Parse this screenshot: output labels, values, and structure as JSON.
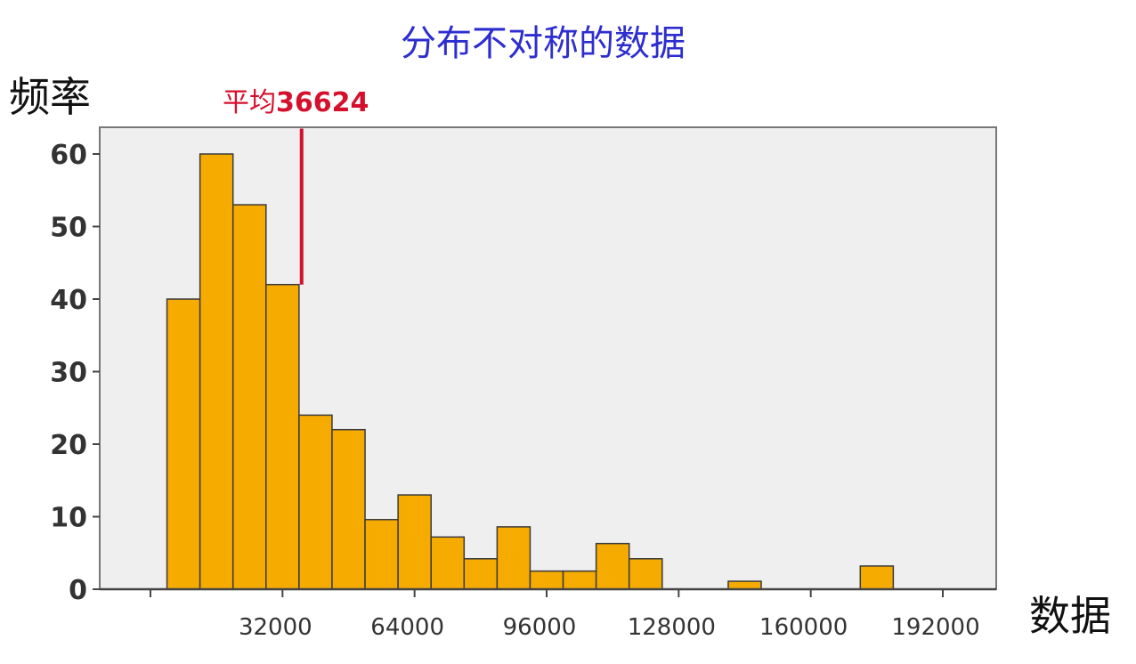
{
  "chart_data": {
    "type": "bar",
    "title": "分布不对称的数据",
    "ylabel": "频率",
    "xlabel": "数据",
    "ylim": [
      0,
      64
    ],
    "xlim": [
      -8000,
      200000
    ],
    "yticks": [
      0,
      10,
      20,
      30,
      40,
      50,
      60
    ],
    "xticks": [
      "32000",
      "64000",
      "96000",
      "128000",
      "160000",
      "192000"
    ],
    "xtick_values": [
      32000,
      64000,
      96000,
      128000,
      160000,
      192000
    ],
    "grid": false,
    "legend": "none",
    "bin_width": 8000,
    "bins": [
      {
        "start": 4000,
        "value": 40
      },
      {
        "start": 12000,
        "value": 60
      },
      {
        "start": 20000,
        "value": 53
      },
      {
        "start": 28000,
        "value": 42
      },
      {
        "start": 36000,
        "value": 24
      },
      {
        "start": 44000,
        "value": 22
      },
      {
        "start": 52000,
        "value": 9.6
      },
      {
        "start": 60000,
        "value": 13
      },
      {
        "start": 68000,
        "value": 7.2
      },
      {
        "start": 76000,
        "value": 4.2
      },
      {
        "start": 84000,
        "value": 8.6
      },
      {
        "start": 92000,
        "value": 2.5
      },
      {
        "start": 100000,
        "value": 2.5
      },
      {
        "start": 108000,
        "value": 6.3
      },
      {
        "start": 116000,
        "value": 4.2
      },
      {
        "start": 140000,
        "value": 1.1
      },
      {
        "start": 172000,
        "value": 3.2
      }
    ],
    "mean": {
      "label_prefix": "平均",
      "value_label": "36624",
      "value": 36624,
      "line_top": 63.5,
      "line_bottom": 42
    },
    "colors": {
      "bar": "#F5AB00",
      "bar_edge": "#3a3a3a",
      "plot_bg": "#EFEFF0",
      "title": "#2E2ECF",
      "mean": "#D4102D"
    }
  }
}
